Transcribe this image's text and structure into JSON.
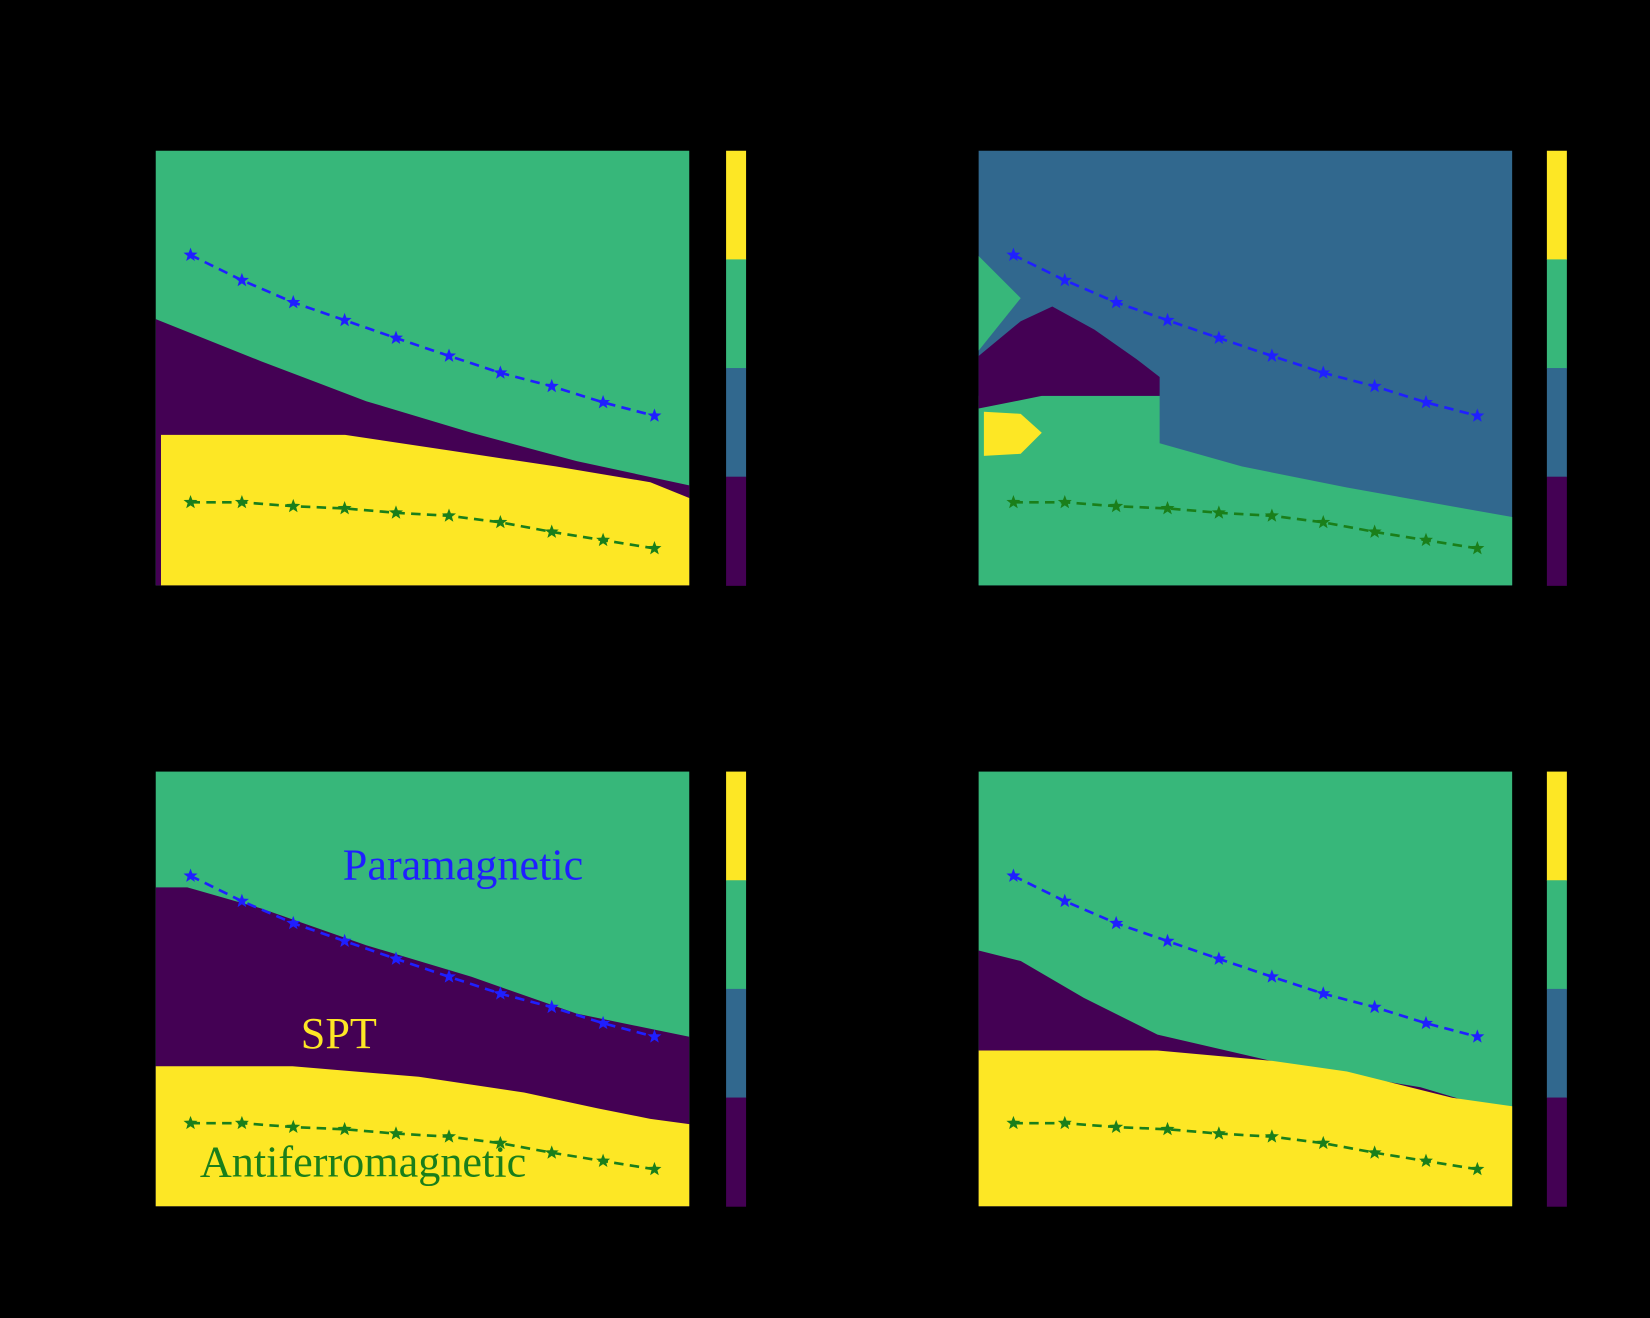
{
  "chart_data": [
    {
      "type": "line",
      "xlim": [
        -0.01,
        3.21
      ],
      "ylim": [
        0,
        1
      ],
      "series": [
        {
          "color": "#1f1fff",
          "x": [
            0.2,
            0.51,
            0.82,
            1.13,
            1.44,
            1.76,
            2.07,
            2.38,
            2.69,
            3.0
          ],
          "values": [
            0.76,
            0.702,
            0.651,
            0.61,
            0.569,
            0.528,
            0.489,
            0.458,
            0.421,
            0.39
          ]
        },
        {
          "color": "#1a7f1a",
          "x": [
            0.2,
            0.51,
            0.82,
            1.13,
            1.44,
            1.76,
            2.07,
            2.38,
            2.69,
            3.0
          ],
          "values": [
            0.191,
            0.191,
            0.182,
            0.177,
            0.167,
            0.16,
            0.145,
            0.123,
            0.104,
            0.085
          ]
        }
      ]
    },
    {
      "type": "line",
      "xlim": [
        -0.01,
        3.21
      ],
      "ylim": [
        0,
        1
      ],
      "series": [
        {
          "color": "#1f1fff",
          "x": [
            0.2,
            0.51,
            0.82,
            1.13,
            1.44,
            1.76,
            2.07,
            2.38,
            2.69,
            3.0
          ],
          "values": [
            0.76,
            0.702,
            0.651,
            0.61,
            0.569,
            0.528,
            0.489,
            0.458,
            0.421,
            0.39
          ]
        },
        {
          "color": "#1a7f1a",
          "x": [
            0.2,
            0.51,
            0.82,
            1.13,
            1.44,
            1.76,
            2.07,
            2.38,
            2.69,
            3.0
          ],
          "values": [
            0.191,
            0.191,
            0.182,
            0.177,
            0.167,
            0.16,
            0.145,
            0.123,
            0.104,
            0.085
          ]
        }
      ]
    },
    {
      "type": "line",
      "xlim": [
        -0.01,
        3.21
      ],
      "ylim": [
        0,
        1
      ],
      "series": [
        {
          "color": "#1f1fff",
          "x": [
            0.2,
            0.51,
            0.82,
            1.13,
            1.44,
            1.76,
            2.07,
            2.38,
            2.69,
            3.0
          ],
          "values": [
            0.76,
            0.702,
            0.651,
            0.61,
            0.569,
            0.528,
            0.489,
            0.458,
            0.421,
            0.39
          ]
        },
        {
          "color": "#1a7f1a",
          "x": [
            0.2,
            0.51,
            0.82,
            1.13,
            1.44,
            1.76,
            2.07,
            2.38,
            2.69,
            3.0
          ],
          "values": [
            0.191,
            0.191,
            0.182,
            0.177,
            0.167,
            0.16,
            0.145,
            0.123,
            0.104,
            0.085
          ]
        }
      ],
      "annotations": [
        {
          "text": "Paramagnetic",
          "color": "#1f1fff"
        },
        {
          "text": "SPT",
          "color": "#fde725"
        },
        {
          "text": "Antiferromagnetic",
          "color": "#1a7f1a"
        }
      ]
    },
    {
      "type": "line",
      "xlim": [
        -0.01,
        3.21
      ],
      "ylim": [
        0,
        1
      ],
      "series": [
        {
          "color": "#1f1fff",
          "x": [
            0.2,
            0.51,
            0.82,
            1.13,
            1.44,
            1.76,
            2.07,
            2.38,
            2.69,
            3.0
          ],
          "values": [
            0.76,
            0.702,
            0.651,
            0.61,
            0.569,
            0.528,
            0.489,
            0.458,
            0.421,
            0.39
          ]
        },
        {
          "color": "#1a7f1a",
          "x": [
            0.2,
            0.51,
            0.82,
            1.13,
            1.44,
            1.76,
            2.07,
            2.38,
            2.69,
            3.0
          ],
          "values": [
            0.191,
            0.191,
            0.182,
            0.177,
            0.167,
            0.16,
            0.145,
            0.123,
            0.104,
            0.085
          ]
        }
      ]
    }
  ]
}
